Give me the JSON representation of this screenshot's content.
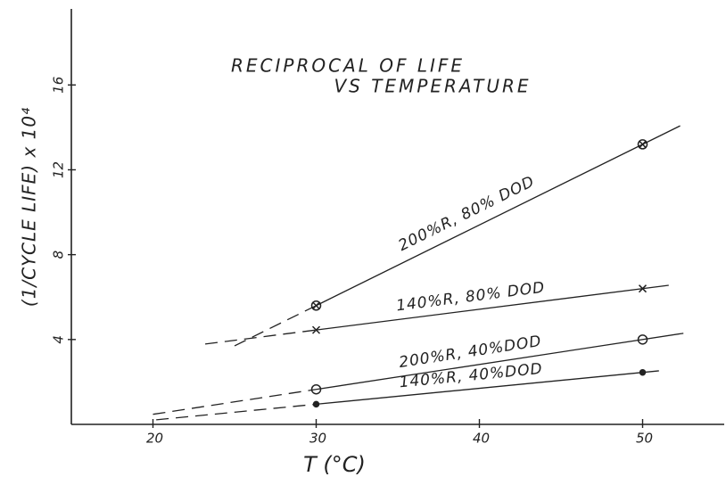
{
  "chart_data": {
    "type": "line",
    "title": "RECIPROCAL OF LIFE",
    "subtitle": "VS TEMPERATURE",
    "x_label": "T (°C)",
    "y_label": "(1/CYCLE LIFE) x 10⁴",
    "xlim": [
      15,
      55
    ],
    "xticks": [
      20,
      30,
      40,
      50
    ],
    "ylim": [
      0,
      19.5
    ],
    "yticks": [
      4,
      8,
      12,
      16
    ],
    "grid": false,
    "series": [
      {
        "name": "200%R, 80% DOD",
        "color": "#222222",
        "marker": "circle-x",
        "x": [
          30,
          50
        ],
        "values": [
          5.6,
          13.2
        ],
        "fit_x": [
          25,
          52.3
        ]
      },
      {
        "name": "140%R, 80% DOD",
        "color": "#222222",
        "marker": "x",
        "x": [
          30,
          50
        ],
        "values": [
          4.45,
          6.4
        ],
        "fit_x": [
          23.2,
          51.6
        ]
      },
      {
        "name": "200%R, 40%DOD",
        "color": "#222222",
        "marker": "circle",
        "x": [
          30,
          50
        ],
        "values": [
          1.65,
          4.0
        ],
        "fit_x": [
          20,
          52.5
        ]
      },
      {
        "name": "140%R, 40%DOD",
        "color": "#222222",
        "marker": "dot",
        "x": [
          30,
          50
        ],
        "values": [
          0.95,
          2.45
        ],
        "fit_x": [
          20.2,
          51
        ]
      }
    ]
  }
}
